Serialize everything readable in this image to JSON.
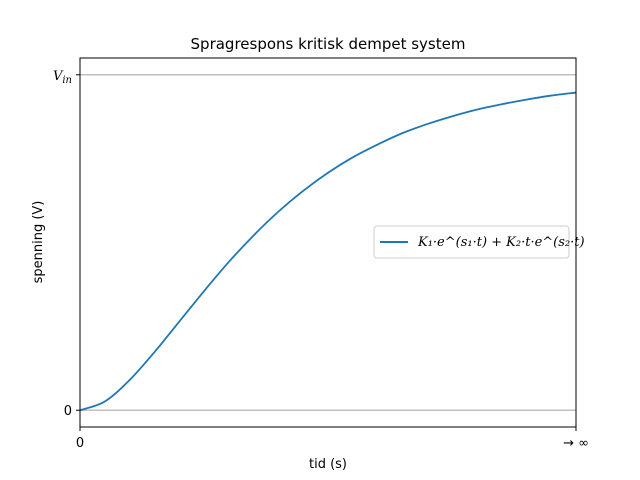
{
  "chart_data": {
    "type": "line",
    "title": "Spragrespons kritisk dempet system",
    "xlabel": "tid (s)",
    "ylabel": "spenning (V)",
    "x_ticks": [
      "0",
      "→ ∞"
    ],
    "y_ticks": [
      {
        "label": "0",
        "value": 0
      },
      {
        "label": "V_in",
        "value": 1
      }
    ],
    "reference_lines": [
      0,
      1
    ],
    "reference_line_color": "#bfbfbf",
    "xlim": [
      0,
      10
    ],
    "ylim": [
      -0.05,
      1.05
    ],
    "grid": false,
    "legend_position": "center-right",
    "series": [
      {
        "name": "K₁·e^(s₁·t) + K₂·t·e^(s₂·t)",
        "color": "#1f77b4",
        "x": [
          0,
          0.5,
          1,
          1.5,
          2,
          2.5,
          3,
          3.5,
          4,
          4.5,
          5,
          5.5,
          6,
          6.5,
          7,
          7.5,
          8,
          8.5,
          9,
          9.5,
          10
        ],
        "y": [
          0,
          0.026,
          0.09,
          0.173,
          0.264,
          0.355,
          0.442,
          0.521,
          0.592,
          0.654,
          0.708,
          0.754,
          0.792,
          0.826,
          0.853,
          0.876,
          0.896,
          0.912,
          0.926,
          0.938,
          0.947
        ]
      }
    ]
  }
}
